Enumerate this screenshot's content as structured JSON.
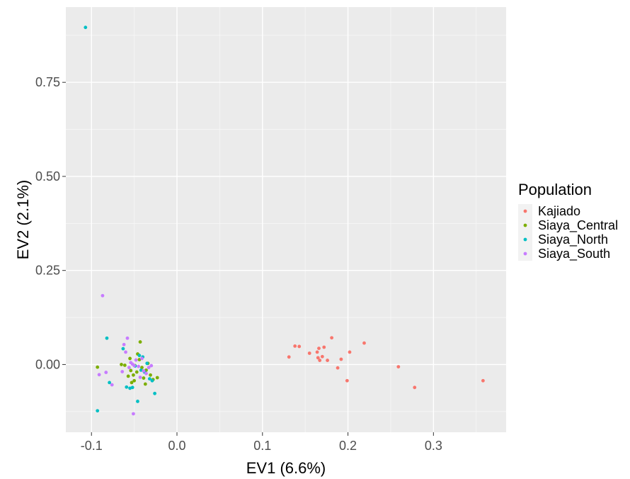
{
  "chart_data": {
    "type": "scatter",
    "xlabel": "EV1 (6.6%)",
    "ylabel": "EV2 (2.1%)",
    "xlim": [
      -0.13,
      0.385
    ],
    "ylim": [
      -0.18,
      0.95
    ],
    "x_ticks": [
      -0.1,
      0.0,
      0.1,
      0.2,
      0.3
    ],
    "x_tick_labels": [
      "-0.1",
      "0.0",
      "0.1",
      "0.2",
      "0.3"
    ],
    "y_ticks": [
      0.0,
      0.25,
      0.5,
      0.75
    ],
    "y_tick_labels": [
      "0.00",
      "0.25",
      "0.50",
      "0.75"
    ],
    "grid": true,
    "legend": {
      "title": "Population",
      "placement": "right"
    },
    "series": [
      {
        "name": "Kajiado",
        "color": "#F8766D",
        "points": [
          [
            0.131,
            0.02
          ],
          [
            0.138,
            0.049
          ],
          [
            0.143,
            0.048
          ],
          [
            0.155,
            0.03
          ],
          [
            0.164,
            0.033
          ],
          [
            0.165,
            0.018
          ],
          [
            0.166,
            0.043
          ],
          [
            0.167,
            0.011
          ],
          [
            0.17,
            0.021
          ],
          [
            0.172,
            0.046
          ],
          [
            0.176,
            0.011
          ],
          [
            0.181,
            0.071
          ],
          [
            0.188,
            -0.009
          ],
          [
            0.192,
            0.014
          ],
          [
            0.199,
            -0.043
          ],
          [
            0.202,
            0.033
          ],
          [
            0.219,
            0.057
          ],
          [
            0.259,
            -0.006
          ],
          [
            0.278,
            -0.061
          ],
          [
            0.358,
            -0.043
          ]
        ]
      },
      {
        "name": "Siaya_Central",
        "color": "#7CAE00",
        "points": [
          [
            -0.093,
            -0.007
          ],
          [
            -0.065,
            0.0
          ],
          [
            -0.061,
            -0.002
          ],
          [
            -0.057,
            -0.031
          ],
          [
            -0.055,
            0.016
          ],
          [
            -0.053,
            -0.048
          ],
          [
            -0.051,
            -0.028
          ],
          [
            -0.049,
            -0.003
          ],
          [
            -0.047,
            -0.02
          ],
          [
            -0.046,
            0.028
          ],
          [
            -0.044,
            0.013
          ],
          [
            -0.043,
            0.06
          ],
          [
            -0.041,
            -0.008
          ],
          [
            -0.039,
            -0.036
          ],
          [
            -0.037,
            -0.052
          ],
          [
            -0.036,
            -0.015
          ],
          [
            -0.034,
            0.003
          ],
          [
            -0.031,
            -0.028
          ],
          [
            -0.028,
            -0.04
          ],
          [
            -0.023,
            -0.035
          ],
          [
            -0.05,
            -0.043
          ],
          [
            -0.054,
            -0.016
          ]
        ]
      },
      {
        "name": "Siaya_North",
        "color": "#00BFC4",
        "points": [
          [
            -0.107,
            0.896
          ],
          [
            -0.093,
            -0.123
          ],
          [
            -0.082,
            0.07
          ],
          [
            -0.079,
            -0.048
          ],
          [
            -0.063,
            0.042
          ],
          [
            -0.059,
            -0.06
          ],
          [
            -0.055,
            -0.063
          ],
          [
            -0.052,
            -0.061
          ],
          [
            -0.049,
            -0.004
          ],
          [
            -0.046,
            -0.098
          ],
          [
            -0.044,
            0.024
          ],
          [
            -0.042,
            -0.015
          ],
          [
            -0.04,
            0.02
          ],
          [
            -0.038,
            -0.02
          ],
          [
            -0.035,
            0.003
          ],
          [
            -0.032,
            -0.038
          ],
          [
            -0.029,
            -0.043
          ],
          [
            -0.026,
            -0.077
          ]
        ]
      },
      {
        "name": "Siaya_South",
        "color": "#C77CFF",
        "points": [
          [
            -0.087,
            0.183
          ],
          [
            -0.091,
            -0.027
          ],
          [
            -0.083,
            -0.021
          ],
          [
            -0.076,
            -0.054
          ],
          [
            -0.064,
            -0.019
          ],
          [
            -0.062,
            0.053
          ],
          [
            -0.06,
            0.033
          ],
          [
            -0.058,
            0.07
          ],
          [
            -0.056,
            -0.008
          ],
          [
            -0.054,
            0.005
          ],
          [
            -0.052,
            0.001
          ],
          [
            -0.051,
            -0.131
          ],
          [
            -0.05,
            -0.003
          ],
          [
            -0.048,
            0.012
          ],
          [
            -0.045,
            -0.005
          ],
          [
            -0.043,
            -0.034
          ],
          [
            -0.041,
            0.016
          ],
          [
            -0.039,
            -0.017
          ],
          [
            -0.036,
            -0.024
          ],
          [
            -0.033,
            -0.008
          ],
          [
            -0.03,
            -0.003
          ]
        ]
      }
    ]
  }
}
